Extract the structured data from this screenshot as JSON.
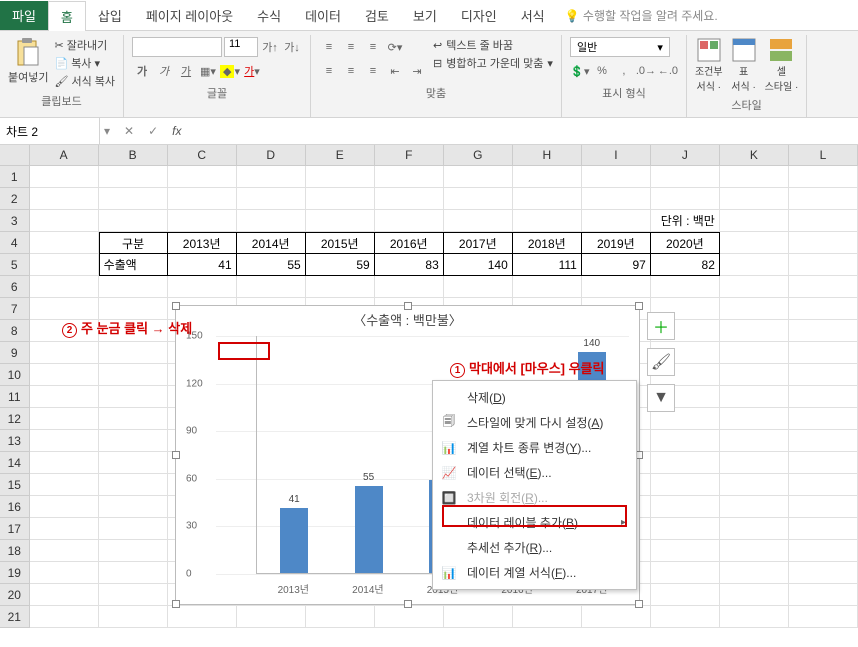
{
  "tabs": {
    "file": "파일",
    "home": "홈",
    "insert": "삽입",
    "page": "페이지 레이아웃",
    "formula": "수식",
    "data": "데이터",
    "review": "검토",
    "view": "보기",
    "design": "디자인",
    "format": "서식",
    "tell": "수행할 작업을 알려 주세요."
  },
  "ribbon": {
    "paste": "붙여넣기",
    "cut": "잘라내기",
    "copy": "복사",
    "fmtpaint": "서식 복사",
    "clipboard": "클립보드",
    "fontSize": "11",
    "bold": "가",
    "italic": "가",
    "under": "가",
    "font_group": "글꼴",
    "wrap": "텍스트 줄 바꿈",
    "merge": "병합하고 가운데 맞춤",
    "align_group": "맞춤",
    "numfmt": "일반",
    "num_group": "표시 형식",
    "condfmt": "조건부",
    "condfmt2": "서식 ·",
    "tablefmt": "표",
    "tablefmt2": "서식 ·",
    "cellstyle": "셀",
    "cellstyle2": "스타일 ·",
    "style_group": "스타일"
  },
  "namebox": "차트 2",
  "grid": {
    "cols": [
      "A",
      "B",
      "C",
      "D",
      "E",
      "F",
      "G",
      "H",
      "I",
      "J",
      "K",
      "L"
    ],
    "rows": 21,
    "unit_label": "단위 : 백만$",
    "header": [
      "구분",
      "2013년",
      "2014년",
      "2015년",
      "2016년",
      "2017년",
      "2018년",
      "2019년",
      "2020년"
    ],
    "label": "수출액",
    "values": [
      "41",
      "55",
      "59",
      "83",
      "140",
      "111",
      "97",
      "82"
    ]
  },
  "chart": {
    "title": "〈수출액 : 백만불〉",
    "ylim": 150,
    "yticks": [
      0,
      30,
      60,
      90,
      120,
      150
    ],
    "categories": [
      "2013년",
      "2014년",
      "2015년",
      "2016년",
      "2017년"
    ],
    "values": [
      41,
      55,
      59,
      83,
      140
    ],
    "bar_color": "#4e88c7"
  },
  "anno": {
    "a1": "주 눈금 클릭 → 삭제",
    "a2": "막대에서 [마우스] 우클릭"
  },
  "ctx": {
    "delete": "삭제(D)",
    "reset": "스타일에 맞게 다시 설정(A)",
    "changeType": "계열 차트 종류 변경(Y)...",
    "selectData": "데이터 선택(E)...",
    "rotate3d": "3차원 회전(R)...",
    "addLabel": "데이터 레이블 추가(B)",
    "trendline": "추세선 추가(R)...",
    "fmtSeries": "데이터 계열 서식(F)..."
  }
}
